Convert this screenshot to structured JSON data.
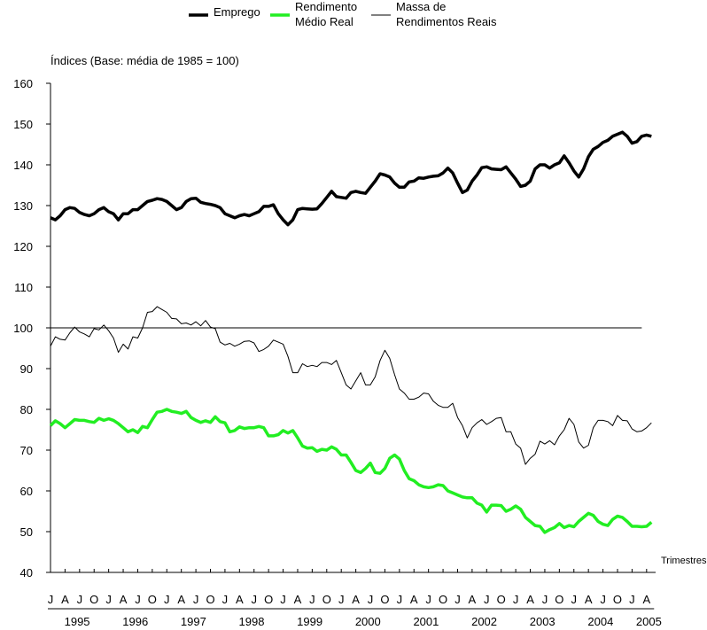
{
  "chart_data": {
    "type": "line",
    "y_axis_label": "Índices (Base: média de 1985 = 100)",
    "x_axis_label": "Trimestres",
    "categories": [
      "J",
      null,
      null,
      "A",
      null,
      null,
      "J",
      null,
      null,
      "O",
      null,
      null,
      "J",
      null,
      null,
      "A",
      null,
      null,
      "J",
      null,
      null,
      "O",
      null,
      null,
      "J",
      null,
      null,
      "A",
      null,
      null,
      "J",
      null,
      null,
      "O",
      null,
      null,
      "J",
      null,
      null,
      "A",
      null,
      null,
      "J",
      null,
      null,
      "O",
      null,
      null,
      "J",
      null,
      null,
      "A",
      null,
      null,
      "J",
      null,
      null,
      "O",
      null,
      null,
      "J",
      null,
      null,
      "A",
      null,
      null,
      "J",
      null,
      null,
      "O",
      null,
      null,
      "J",
      null,
      null,
      "A",
      null,
      null,
      "J",
      null,
      null,
      "O",
      null,
      null,
      "J",
      null,
      null,
      "A",
      null,
      null,
      "J",
      null,
      null,
      "O",
      null,
      null,
      "J",
      null,
      null,
      "A",
      null,
      null,
      "J",
      null,
      null,
      "O",
      null,
      null,
      "J",
      null,
      null,
      "A",
      null,
      null,
      "J",
      null,
      null,
      "O",
      null,
      null,
      "J",
      null,
      null,
      "A",
      null
    ],
    "years": [
      "1995",
      "1996",
      "1997",
      "1998",
      "1999",
      "2000",
      "2001",
      "2002",
      "2003",
      "2004",
      "2005"
    ],
    "ylim": [
      40,
      160
    ],
    "yticks": [
      40,
      50,
      60,
      70,
      80,
      90,
      100,
      110,
      120,
      130,
      140,
      150,
      160
    ],
    "reference_line": 100,
    "series": [
      {
        "name": "Emprego",
        "color": "#000000",
        "width": 3.5,
        "values": [
          127,
          126.5,
          127.5,
          129,
          129.5,
          129.3,
          128.3,
          127.8,
          127.5,
          128,
          129,
          129.5,
          128.5,
          128,
          126.5,
          128,
          128,
          129,
          129,
          130,
          131,
          131.3,
          131.7,
          131.5,
          131,
          130,
          129,
          129.5,
          131,
          131.7,
          131.8,
          130.8,
          130.5,
          130.3,
          130,
          129.5,
          128,
          127.5,
          127,
          127.5,
          127.8,
          127.5,
          128,
          128.5,
          129.8,
          129.8,
          130.2,
          128,
          126.5,
          125.3,
          126.5,
          129,
          129.3,
          129.2,
          129.1,
          129.2,
          130.5,
          132,
          133.5,
          132.2,
          132,
          131.8,
          133.2,
          133.5,
          133.2,
          133,
          134.5,
          136,
          137.8,
          137.5,
          137,
          135.5,
          134.5,
          134.5,
          135.8,
          136,
          136.8,
          136.7,
          137,
          137.2,
          137.3,
          138,
          139.2,
          138,
          135.5,
          133.2,
          133.8,
          136,
          137.5,
          139.3,
          139.5,
          139,
          138.9,
          138.8,
          139.5,
          138,
          136.5,
          134.7,
          135,
          136,
          139,
          140,
          140,
          139.2,
          140,
          140.5,
          142.2,
          140.5,
          138.5,
          137,
          139,
          142,
          143.8,
          144.5,
          145.5,
          146,
          147,
          147.5,
          148,
          147,
          145.3,
          145.7,
          147,
          147.3,
          147
        ]
      },
      {
        "name": "Rendimento\nMédio Real",
        "color": "#22ee22",
        "width": 3.5,
        "values": [
          76,
          77.2,
          76.5,
          75.5,
          76.5,
          77.5,
          77.3,
          77.3,
          77,
          76.8,
          77.8,
          77.3,
          77.7,
          77.3,
          76.5,
          75.5,
          74.5,
          75,
          74.3,
          75.8,
          75.5,
          77.5,
          79.3,
          79.5,
          80,
          79.5,
          79.3,
          79,
          79.5,
          78,
          77.3,
          76.8,
          77.2,
          76.8,
          78.2,
          77,
          76.7,
          74.5,
          74.8,
          75.7,
          75.3,
          75.5,
          75.5,
          75.8,
          75.5,
          73.5,
          73.5,
          73.8,
          74.8,
          74.2,
          74.8,
          73,
          71,
          70.5,
          70.6,
          69.7,
          70.2,
          70,
          70.8,
          70.2,
          68.8,
          68.8,
          67,
          65,
          64.5,
          65.5,
          66.8,
          64.5,
          64.3,
          65.5,
          68,
          68.8,
          67.8,
          65,
          63,
          62.5,
          61.5,
          61,
          60.8,
          61,
          61.5,
          61.3,
          60,
          59.5,
          59,
          58.5,
          58.3,
          58.3,
          57,
          56.5,
          54.8,
          56.5,
          56.5,
          56.4,
          55,
          55.5,
          56.3,
          55.5,
          53.5,
          52.5,
          51.5,
          51.3,
          49.8,
          50.5,
          51,
          52,
          51,
          51.5,
          51.2,
          52.5,
          53.5,
          54.5,
          54,
          52.5,
          51.8,
          51.5,
          53,
          53.8,
          53.5,
          52.5,
          51.3,
          51.3,
          51.2,
          51.3,
          52.3
        ]
      },
      {
        "name": "Massa de\nRendimentos Reais",
        "color": "#000000",
        "width": 1,
        "values": [
          95.5,
          97.8,
          97.2,
          97,
          98.8,
          100.2,
          99,
          98.5,
          97.8,
          99.8,
          99.5,
          100.7,
          99.3,
          97.5,
          94,
          96,
          94.8,
          97.8,
          97.5,
          100,
          103.8,
          104,
          105.2,
          104.5,
          103.8,
          102.3,
          102.2,
          101,
          101.2,
          100.7,
          101.5,
          100.5,
          101.8,
          100.2,
          99.8,
          96.5,
          95.8,
          96.2,
          95.5,
          96,
          96.7,
          96.8,
          96.3,
          94.2,
          94.7,
          95.5,
          97,
          96.5,
          96,
          93,
          89,
          89,
          91.2,
          90.5,
          90.8,
          90.5,
          91.5,
          91.5,
          91,
          92,
          89,
          86,
          85,
          87,
          89,
          86,
          86,
          88,
          92,
          94.5,
          92.5,
          88.5,
          85,
          84,
          82.5,
          82.5,
          83,
          84,
          83.8,
          82,
          81,
          80.5,
          80.5,
          81.5,
          78,
          76,
          73,
          75.5,
          76.7,
          77.5,
          76.3,
          77,
          77.8,
          78,
          74.5,
          74.5,
          71.5,
          70.5,
          66.5,
          68,
          69,
          72.2,
          71.5,
          72.3,
          71.3,
          73.5,
          75,
          77.8,
          76.3,
          72,
          70.5,
          71.2,
          75.5,
          77.3,
          77.3,
          77,
          76,
          78.5,
          77.3,
          77.2,
          75.2,
          74.5,
          74.7,
          75.5,
          76.7
        ]
      }
    ]
  }
}
